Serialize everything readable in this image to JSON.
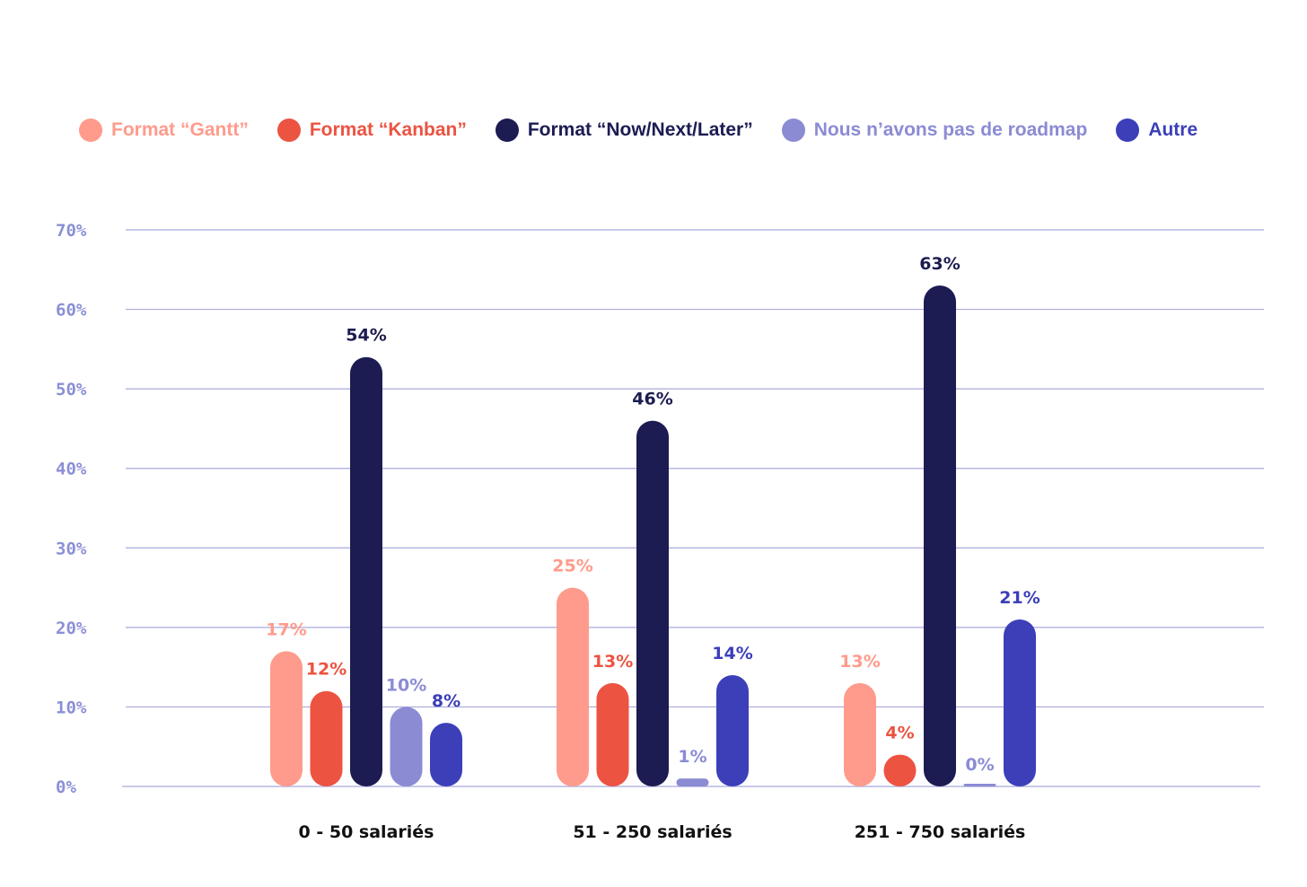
{
  "chart_data": {
    "type": "bar",
    "categories": [
      "0 - 50 salariés",
      "51 - 250 salariés",
      "251 - 750 salariés"
    ],
    "series": [
      {
        "name": "Format “Gantt”",
        "color": "#ff9b8c",
        "values": [
          17,
          25,
          13
        ],
        "labels": [
          "17%",
          "25%",
          "13%"
        ]
      },
      {
        "name": "Format “Kanban”",
        "color": "#ec5341",
        "values": [
          12,
          13,
          4
        ],
        "labels": [
          "12%",
          "13%",
          "4%"
        ]
      },
      {
        "name": "Format “Now/Next/Later”",
        "color": "#1c1c52",
        "values": [
          54,
          46,
          63
        ],
        "labels": [
          "54%",
          "46%",
          "63%"
        ]
      },
      {
        "name": "Nous n’avons pas de roadmap",
        "color": "#8b8bd4",
        "values": [
          10,
          1,
          0
        ],
        "labels": [
          "10%",
          "1%",
          "0%"
        ]
      },
      {
        "name": "Autre",
        "color": "#3c3fb8",
        "values": [
          8,
          14,
          21
        ],
        "labels": [
          "8%",
          "14%",
          "21%"
        ]
      }
    ],
    "y_ticks": [
      "0%",
      "10%",
      "20%",
      "30%",
      "40%",
      "50%",
      "60%",
      "70%"
    ],
    "ylim": [
      0,
      70
    ],
    "grid": true,
    "legend_position": "top",
    "title": "",
    "xlabel": "",
    "ylabel": ""
  }
}
